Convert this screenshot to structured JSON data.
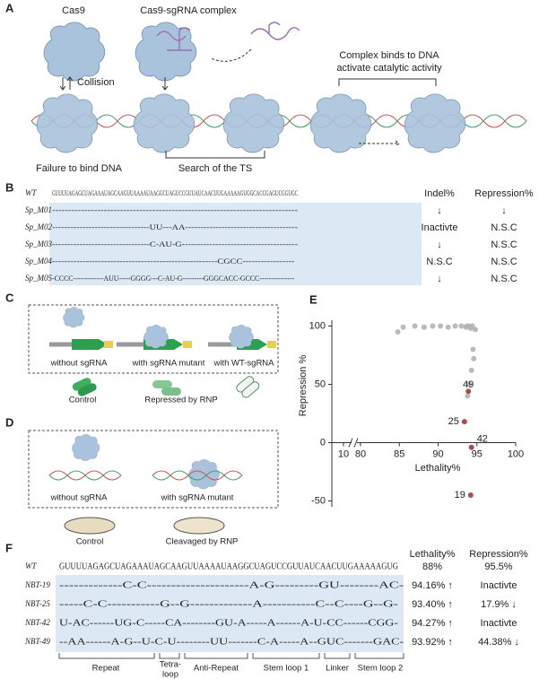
{
  "panel_a": {
    "label": "A",
    "cas9": "Cas9",
    "complex": "Cas9-sgRNA complex",
    "collision": "Collision",
    "binds": [
      "Complex binds to DNA",
      "activate catalytic activity"
    ],
    "failure": "Failure to bind DNA",
    "search": "Search of the TS"
  },
  "panel_b": {
    "label": "B",
    "headers": {
      "indel": "Indel%",
      "repression": "Repression%"
    },
    "rows": [
      {
        "name": "WT",
        "sequence": "GUUUUAGAGCUAGAAAUAGCAAGUUAAAAUAAGGCUAGUCCGUUAUCAACUUGAAAAAGUGGCACCGAGUCGGUGC"
      },
      {
        "name": "Sp_M01",
        "sequence": "----------------------------------------------------------------------------",
        "indel": "↓",
        "repression": "↓"
      },
      {
        "name": "Sp_M02",
        "sequence": "--------------------------------UU---AA-------------------------------------",
        "indel": "Inactivte",
        "repression": "N.S.C"
      },
      {
        "name": "Sp_M03",
        "sequence": "--------------------------------C-AU-G--------------------------------------",
        "indel": "↓",
        "repression": "N.S.C"
      },
      {
        "name": "Sp_M04",
        "sequence": "------------------------------------------------------CGCC-----------------",
        "indel": "N.S.C",
        "repression": "N.S.C"
      },
      {
        "name": "Sp_M05",
        "sequence": "-CCCC-------------AUU-----GGGG---C-AU-G---------GGGCACC-GCCC---------------",
        "indel": "↓",
        "repression": "N.S.C"
      }
    ]
  },
  "panel_c": {
    "label": "C",
    "conditions": [
      "without sgRNA",
      "with sgRNA mutant",
      "with WT-sgRNA"
    ],
    "results": [
      "Control",
      "Repressed by RNP"
    ]
  },
  "panel_d": {
    "label": "D",
    "conditions": [
      "without sgRNA",
      "with sgRNA mutant"
    ],
    "results": [
      "Control",
      "Cleavaged by RNP"
    ]
  },
  "chart_data": {
    "type": "scatter",
    "panel_label": "E",
    "x_label": "Lethality%",
    "y_label": "Repression %",
    "xlim": [
      80,
      100
    ],
    "xticks": [
      80,
      85,
      90,
      95,
      100
    ],
    "xticks_before_break": [
      10
    ],
    "ylim": [
      -55,
      105
    ],
    "yticks": [
      -50,
      0,
      50,
      100
    ],
    "series": [
      {
        "color": "#b3b3b3",
        "x": [
          84.8,
          85.5,
          87,
          88.2,
          89.3,
          90.3,
          91.3,
          92.2,
          93,
          93.6,
          94,
          94.4,
          94.8,
          94.5,
          94.3,
          94.6,
          94,
          93.8,
          94.2,
          93.7
        ],
        "values": [
          95,
          99,
          100,
          99,
          100,
          100,
          99,
          100,
          100,
          99,
          100,
          100,
          97,
          80,
          62,
          72,
          50,
          40,
          98,
          100
        ]
      },
      {
        "color": "#a23b3b",
        "x": [
          93.9,
          93.4,
          94.3,
          94.2
        ],
        "values": [
          44,
          18,
          -4,
          -45
        ],
        "point_labels": [
          "49",
          "25",
          "42",
          "19"
        ]
      }
    ]
  },
  "panel_f": {
    "label": "F",
    "headers": {
      "lethality": "Lethality%",
      "repression": "Repression%"
    },
    "rows": [
      {
        "name": "WT",
        "sequence": "GUUUUAGAGCUAGAAAUAGCAAGUUAAAAUAAGGCUAGUCCGUUAUCAACUUGAAAAAGUG",
        "lethality": "88%",
        "repression": "95.5%"
      },
      {
        "name": "NBT-19",
        "sequence": "-------------C-C---------------------A-G---------GU--------AC-",
        "lethality": "94.16% ↑",
        "repression": "Inactivte"
      },
      {
        "name": "NBT-25",
        "sequence": "-----C-C-----------G--G-------------A-----------C--C----G--G-",
        "lethality": "93.40% ↑",
        "repression": "17.9% ↓"
      },
      {
        "name": "NBT-42",
        "sequence": "U-AC------UG-C-----CA--------GU-A-----A------A-U-CC------CGG-",
        "lethality": "94.27% ↑",
        "repression": "Inactivte"
      },
      {
        "name": "NBT-49",
        "sequence": "--AA------A-G--U-C-U--------UU-------C-A-----A--GUC-------GAC-",
        "lethality": "93.92% ↑",
        "repression": "44.38% ↓"
      }
    ],
    "regions": {
      "repeat": "Repeat",
      "tetraloop": [
        "Tetra-",
        "loop"
      ],
      "anti_repeat": "Anti-Repeat",
      "stem1": "Stem loop 1",
      "linker": "Linker",
      "stem2": "Stem loop 2"
    }
  }
}
